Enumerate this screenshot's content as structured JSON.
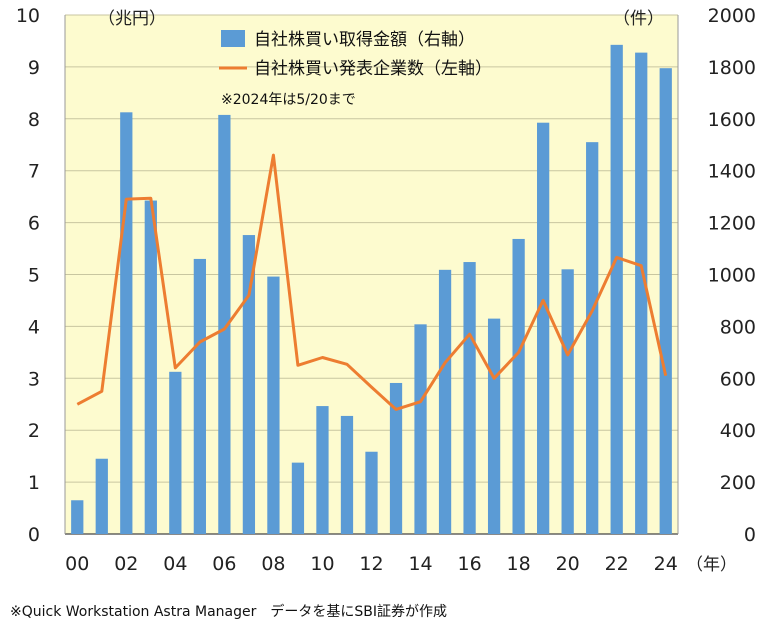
{
  "chart_data": {
    "type": "bar+line",
    "categories": [
      "00",
      "01",
      "02",
      "03",
      "04",
      "05",
      "06",
      "07",
      "08",
      "09",
      "10",
      "11",
      "12",
      "13",
      "14",
      "15",
      "16",
      "17",
      "18",
      "19",
      "20",
      "21",
      "22",
      "23",
      "24"
    ],
    "x_tick_labels": [
      "00",
      "02",
      "04",
      "06",
      "08",
      "10",
      "12",
      "14",
      "16",
      "18",
      "20",
      "22",
      "24"
    ],
    "series": [
      {
        "name": "自社株買い取得金額（右軸）",
        "kind": "bar",
        "axis": "right",
        "color": "#5b9bd5",
        "values": [
          130,
          290,
          1625,
          1285,
          625,
          1060,
          1615,
          1152,
          992,
          275,
          493,
          455,
          317,
          582,
          808,
          1018,
          1048,
          830,
          1137,
          1585,
          1020,
          1510,
          1885,
          1855,
          1795
        ]
      },
      {
        "name": "自社株買い発表企業数（左軸）",
        "kind": "line",
        "axis": "left",
        "color": "#ed7d31",
        "values": [
          2.5,
          2.75,
          6.45,
          6.47,
          3.2,
          3.7,
          3.95,
          4.6,
          7.3,
          3.25,
          3.4,
          3.27,
          2.83,
          2.4,
          2.55,
          3.3,
          3.85,
          3.0,
          3.5,
          4.5,
          3.45,
          4.3,
          5.33,
          5.17,
          3.05
        ]
      }
    ],
    "left_axis": {
      "unit": "（兆円）",
      "ticks": [
        "0",
        "1",
        "2",
        "3",
        "4",
        "5",
        "6",
        "7",
        "8",
        "9",
        "10"
      ],
      "ylim": [
        0,
        10
      ]
    },
    "right_axis": {
      "unit": "（件）",
      "ticks": [
        "0",
        "200",
        "400",
        "600",
        "800",
        "1000",
        "1200",
        "1400",
        "1600",
        "1800",
        "2000"
      ],
      "ylim": [
        0,
        2000
      ]
    },
    "x_unit": "（年）",
    "note": "※2024年は5/20まで",
    "source": "※Quick Workstation Astra Manager　データを基にSBI証券が作成",
    "plot_background": "#fdfbcf"
  }
}
